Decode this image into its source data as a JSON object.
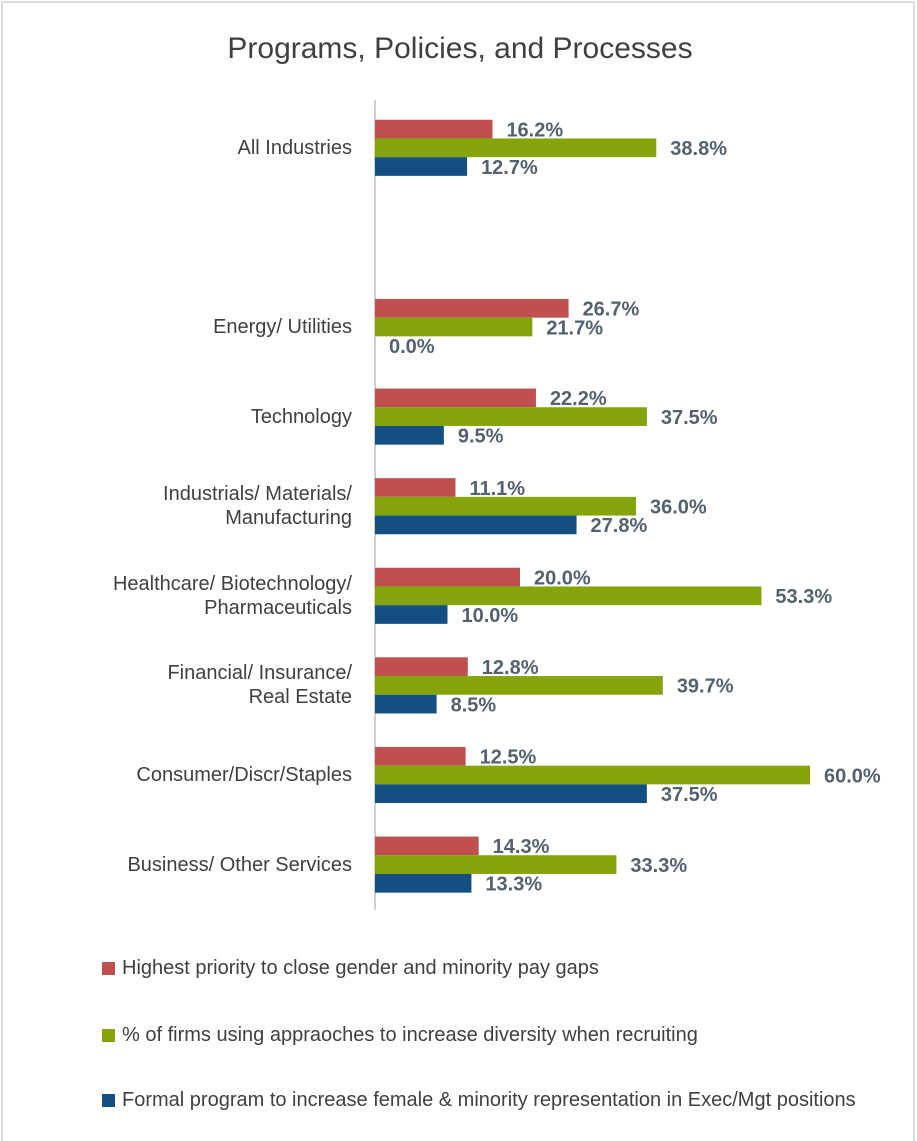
{
  "chart_data": {
    "type": "bar",
    "orientation": "horizontal",
    "title": "Programs, Policies, and Processes",
    "categories": [
      "All Industries",
      null,
      "Energy/ Utilities",
      "Technology",
      "Industrials/ Materials/\nManufacturing",
      "Healthcare/ Biotechnology/\nPharmaceuticals",
      "Financial/ Insurance/\nReal Estate",
      "Consumer/Discr/Staples",
      "Business/ Other Services"
    ],
    "series": [
      {
        "name": "Highest priority to close gender and minority pay gaps",
        "color": "#c0504d",
        "values": [
          16.2,
          null,
          26.7,
          22.2,
          11.1,
          20.0,
          12.8,
          12.5,
          14.3
        ],
        "value_labels": [
          "16.2%",
          null,
          "26.7%",
          "22.2%",
          "11.1%",
          "20.0%",
          "12.8%",
          "12.5%",
          "14.3%"
        ]
      },
      {
        "name": "% of firms using appraoches to increase diversity when recruiting",
        "color": "#84a40a",
        "values": [
          38.8,
          null,
          21.7,
          37.5,
          36.0,
          53.3,
          39.7,
          60.0,
          33.3
        ],
        "value_labels": [
          "38.8%",
          null,
          "21.7%",
          "37.5%",
          "36.0%",
          "53.3%",
          "39.7%",
          "60.0%",
          "33.3%"
        ]
      },
      {
        "name": "Formal program to increase female & minority representation in Exec/Mgt positions",
        "color": "#144f82",
        "values": [
          12.7,
          null,
          0.0,
          9.5,
          27.8,
          10.0,
          8.5,
          37.5,
          13.3
        ],
        "value_labels": [
          "12.7%",
          null,
          "0.0%",
          "9.5%",
          "27.8%",
          "10.0%",
          "8.5%",
          "37.5%",
          "13.3%"
        ]
      }
    ],
    "legend": "bottom"
  }
}
